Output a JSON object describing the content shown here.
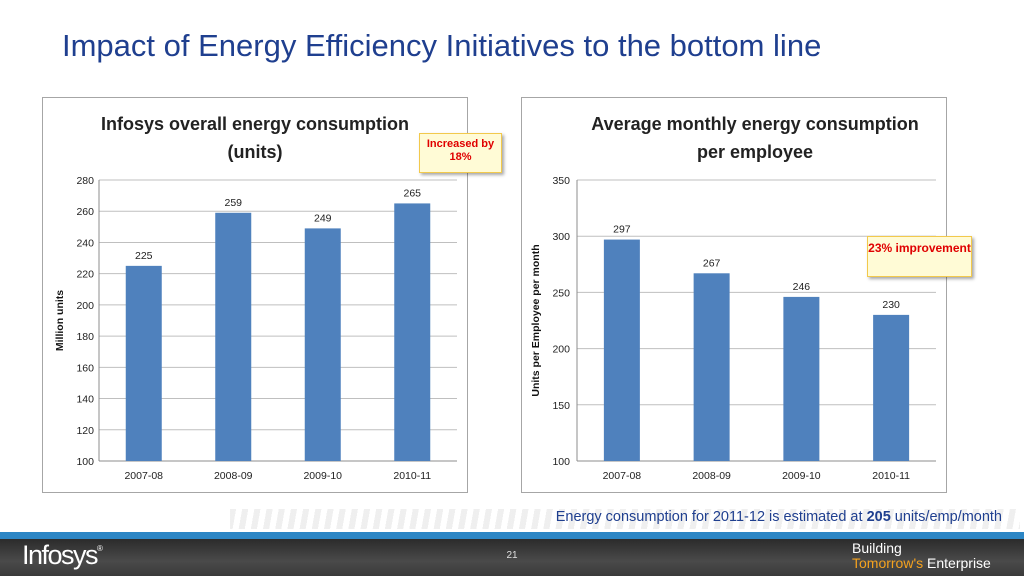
{
  "slide": {
    "title": "Impact of Energy Efficiency Initiatives to the bottom line",
    "footnote_prefix": "Energy consumption for 2011-12 is estimated at",
    "footnote_value": "205",
    "footnote_suffix": "units/emp/month",
    "page_number": "21",
    "logo_text": "Infosys",
    "logo_mark": "®",
    "tagline_line1": "Building",
    "tagline_line2a": "Tomorrow's",
    "tagline_line2b": "Enterprise"
  },
  "callouts": {
    "left": "Increased by 18%",
    "right": "23% improvement"
  },
  "colors": {
    "bar": "#4f81bd",
    "title": "#1f3f8f",
    "callout_text": "#e00000"
  },
  "chart_data": [
    {
      "type": "bar",
      "title": "Infosys overall energy consumption (units)",
      "title_lines": [
        "Infosys overall energy consumption",
        "(units)"
      ],
      "xlabel": "",
      "ylabel": "Million units",
      "categories": [
        "2007-08",
        "2008-09",
        "2009-10",
        "2010-11"
      ],
      "values": [
        225,
        259,
        249,
        265
      ],
      "ylim": [
        100,
        280
      ],
      "yticks": [
        100,
        120,
        140,
        160,
        180,
        200,
        220,
        240,
        260,
        280
      ],
      "grid": true,
      "data_labels": true
    },
    {
      "type": "bar",
      "title": "Average monthly energy consumption per employee",
      "title_lines": [
        "Average monthly energy consumption",
        "per employee"
      ],
      "xlabel": "",
      "ylabel": "Units per Employee per month",
      "categories": [
        "2007-08",
        "2008-09",
        "2009-10",
        "2010-11"
      ],
      "values": [
        297,
        267,
        246,
        230
      ],
      "ylim": [
        100,
        350
      ],
      "yticks": [
        100,
        150,
        200,
        250,
        300,
        350
      ],
      "grid": true,
      "data_labels": true
    }
  ]
}
